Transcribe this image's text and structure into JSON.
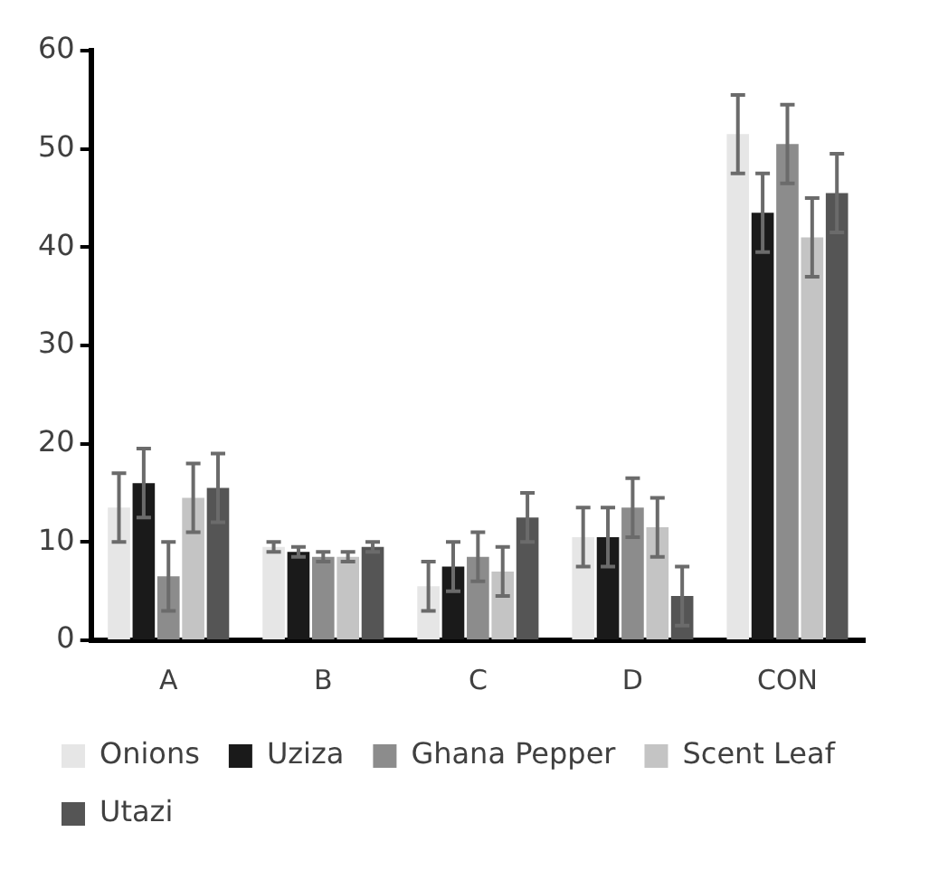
{
  "chart_data": {
    "type": "bar",
    "categories": [
      "A",
      "B",
      "C",
      "D",
      "CON"
    ],
    "series": [
      {
        "name": "Onions",
        "color": "#e6e6e6",
        "values": [
          13.5,
          9.5,
          5.5,
          10.5,
          51.5
        ],
        "errors": [
          3.5,
          0.5,
          2.5,
          3,
          4
        ]
      },
      {
        "name": "Uziza",
        "color": "#1a1a1a",
        "values": [
          16,
          9,
          7.5,
          10.5,
          43.5
        ],
        "errors": [
          3.5,
          0.5,
          2.5,
          3,
          4
        ]
      },
      {
        "name": "Ghana Pepper",
        "color": "#8c8c8c",
        "values": [
          6.5,
          8.5,
          8.5,
          13.5,
          50.5
        ],
        "errors": [
          3.5,
          0.5,
          2.5,
          3,
          4
        ]
      },
      {
        "name": "Scent Leaf",
        "color": "#c4c4c4",
        "values": [
          14.5,
          8.5,
          7,
          11.5,
          41
        ],
        "errors": [
          3.5,
          0.5,
          2.5,
          3,
          4
        ]
      },
      {
        "name": "Utazi",
        "color": "#555555",
        "values": [
          15.5,
          9.5,
          12.5,
          4.5,
          45.5
        ],
        "errors": [
          3.5,
          0.5,
          2.5,
          3,
          4
        ]
      }
    ],
    "ylim": [
      0,
      60
    ],
    "yticks": [
      0,
      10,
      20,
      30,
      40,
      50,
      60
    ],
    "grid": false,
    "legend": "bottom"
  }
}
